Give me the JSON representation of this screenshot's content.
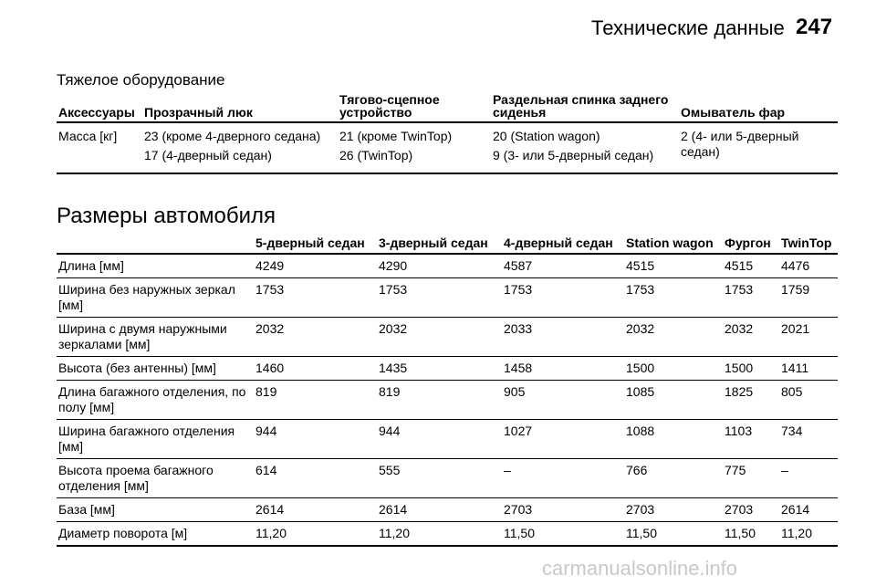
{
  "header": {
    "title": "Технические данные",
    "page_number": "247"
  },
  "heavy_equipment": {
    "title": "Тяжелое оборудование",
    "columns": [
      "Аксессуары",
      "Прозрачный люк",
      "Тягово-сцепное устройство",
      "Раздельная спинка заднего сиденья",
      "Омыватель фар"
    ],
    "row": {
      "label": "Масса [кг]",
      "sunroof": [
        "23 (кроме 4-дверного седана)",
        "17 (4-дверный седан)"
      ],
      "tow": [
        "21 (кроме TwinTop)",
        "26 (TwinTop)"
      ],
      "split_seat": [
        "20 (Station wagon)",
        "9 (3- или 5-дверный седан)"
      ],
      "headlamp_washer": "2 (4- или 5-дверный седан)"
    }
  },
  "dimensions": {
    "title": "Размеры автомобиля",
    "columns": [
      "",
      "5-дверный седан",
      "3-дверный седан",
      "4-дверный седан",
      "Station wagon",
      "Фургон",
      "TwinTop"
    ],
    "rows": [
      {
        "label": "Длина [мм]",
        "values": [
          "4249",
          "4290",
          "4587",
          "4515",
          "4515",
          "4476"
        ]
      },
      {
        "label": "Ширина без наружных зеркал [мм]",
        "values": [
          "1753",
          "1753",
          "1753",
          "1753",
          "1753",
          "1759"
        ]
      },
      {
        "label": "Ширина с двумя наружными зеркалами [мм]",
        "values": [
          "2032",
          "2032",
          "2033",
          "2032",
          "2032",
          "2021"
        ]
      },
      {
        "label": "Высота (без антенны) [мм]",
        "values": [
          "1460",
          "1435",
          "1458",
          "1500",
          "1500",
          "1411"
        ]
      },
      {
        "label": "Длина багажного отделения, по полу [мм]",
        "values": [
          "819",
          "819",
          "905",
          "1085",
          "1825",
          "805"
        ]
      },
      {
        "label": "Ширина багажного отделения [мм]",
        "values": [
          "944",
          "944",
          "1027",
          "1088",
          "1103",
          "734"
        ]
      },
      {
        "label": "Высота проема багажного отделения [мм]",
        "values": [
          "614",
          "555",
          "–",
          "766",
          "775",
          "–"
        ]
      },
      {
        "label": "База [мм]",
        "values": [
          "2614",
          "2614",
          "2703",
          "2703",
          "2703",
          "2614"
        ]
      },
      {
        "label": "Диаметр поворота [м]",
        "values": [
          "11,20",
          "11,20",
          "11,50",
          "11,50",
          "11,50",
          "11,20"
        ]
      }
    ]
  },
  "watermark": "carmanualsonline.info"
}
